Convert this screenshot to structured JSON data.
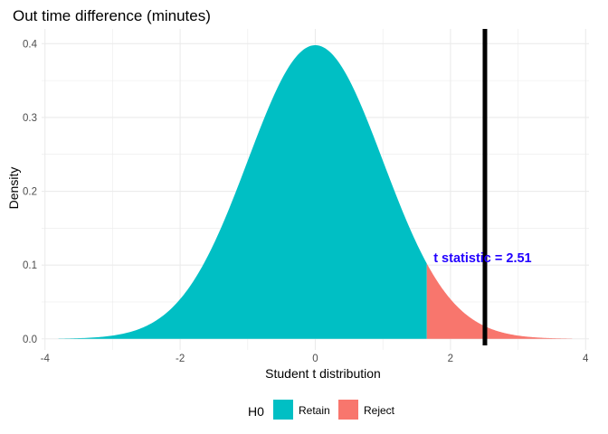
{
  "chart_data": {
    "type": "area",
    "title": "Out time difference (minutes)",
    "xlabel": "Student t distribution",
    "ylabel": "Density",
    "xlim": [
      -4.05,
      4.05
    ],
    "ylim": [
      -0.015,
      0.42
    ],
    "x_ticks": [
      -4,
      -2,
      0,
      2,
      4
    ],
    "x_tick_labels": [
      "-4",
      "-2",
      "0",
      "2",
      "4"
    ],
    "y_ticks": [
      0.0,
      0.1,
      0.2,
      0.3,
      0.4
    ],
    "y_tick_labels": [
      "0.0",
      "0.1",
      "0.2",
      "0.3",
      "0.4"
    ],
    "grid": true,
    "density": {
      "x_min": -3.8,
      "x_max": 3.8,
      "critical_value": 1.65,
      "peak_density": 0.398
    },
    "series": [
      {
        "name": "Retain",
        "x_range": [
          -3.8,
          1.65
        ],
        "color": "#00BFC4"
      },
      {
        "name": "Reject",
        "x_range": [
          1.65,
          3.8
        ],
        "color": "#F8766D"
      }
    ],
    "t_statistic": 2.51,
    "vline_color": "#000000",
    "annotation": {
      "text": "t statistic = 2.51",
      "x": 1.75,
      "y": 0.11,
      "color": "#2200FF"
    },
    "legend": {
      "title": "H0",
      "placement": "bottom",
      "items": [
        {
          "label": "Retain",
          "color": "#00BFC4"
        },
        {
          "label": "Reject",
          "color": "#F8766D"
        }
      ]
    }
  }
}
